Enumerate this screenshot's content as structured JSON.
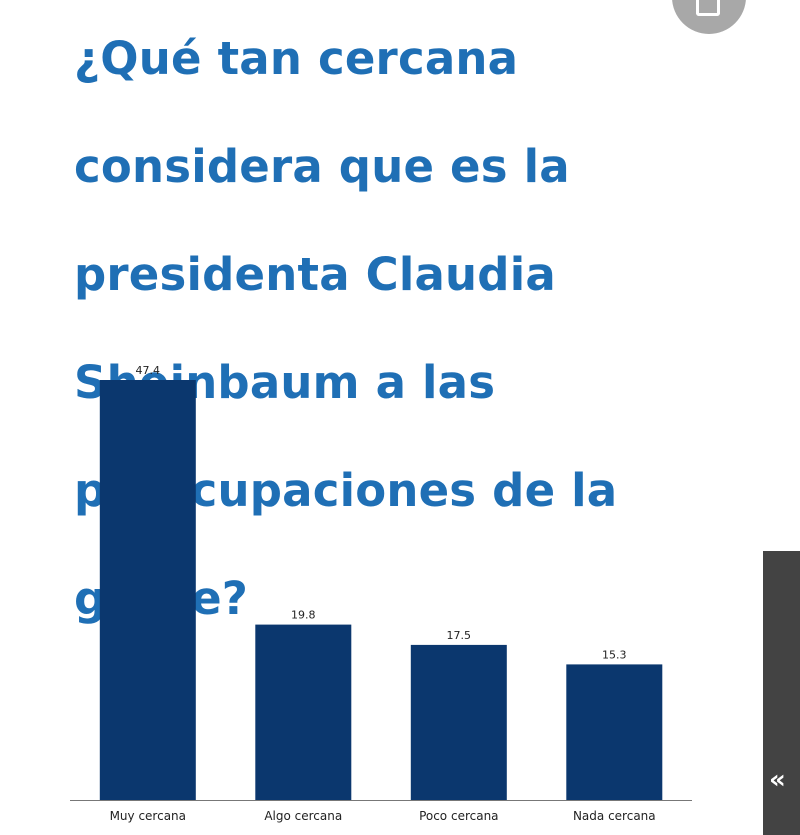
{
  "chart_data": {
    "type": "bar",
    "title": "¿Qué tan cercana considera que es la presidenta Claudia Sheinbaum a las preocupaciones de la gente?",
    "title_lines": [
      "¿Qué tan cercana",
      "considera que es la",
      "presidenta Claudia",
      "Sheinbaum a las",
      "preocupaciones de la",
      "gente?"
    ],
    "categories": [
      "Muy cercana",
      "Algo cercana",
      "Poco cercana",
      "Nada cercana"
    ],
    "values": [
      47.4,
      19.8,
      17.5,
      15.3
    ],
    "value_labels": [
      "47.4",
      "19.8",
      "17.5",
      "15.3"
    ],
    "ylim": [
      0,
      50
    ],
    "grid": false,
    "legend": "none",
    "xlabel": "",
    "ylabel": "",
    "colors": {
      "bar": "#0b376e",
      "title": "#1f6fb5",
      "axis": "#777777",
      "label": "#222222"
    }
  },
  "ui": {
    "top_button_icon": "bookmark-icon",
    "side_tab_icon": "double-chevron-left-icon",
    "side_tab_glyph": "«"
  }
}
